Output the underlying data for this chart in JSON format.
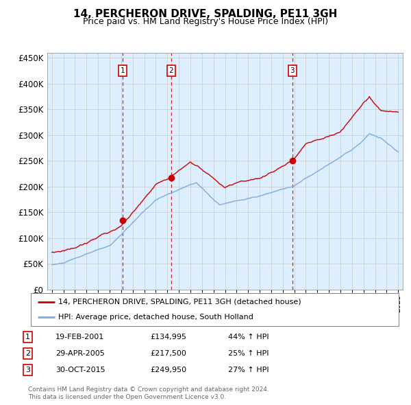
{
  "title": "14, PERCHERON DRIVE, SPALDING, PE11 3GH",
  "subtitle": "Price paid vs. HM Land Registry's House Price Index (HPI)",
  "legend_line1": "14, PERCHERON DRIVE, SPALDING, PE11 3GH (detached house)",
  "legend_line2": "HPI: Average price, detached house, South Holland",
  "footer1": "Contains HM Land Registry data © Crown copyright and database right 2024.",
  "footer2": "This data is licensed under the Open Government Licence v3.0.",
  "sale_color": "#cc0000",
  "hpi_color": "#7aaddc",
  "bg_color": "#ddeeff",
  "purchases": [
    {
      "num": 1,
      "date": "19-FEB-2001",
      "price": "£134,995",
      "pct": "44%",
      "dir": "↑",
      "year_x": 2001.13,
      "price_val": 134995
    },
    {
      "num": 2,
      "date": "29-APR-2005",
      "price": "£217,500",
      "pct": "25%",
      "dir": "↑",
      "year_x": 2005.33,
      "price_val": 217500
    },
    {
      "num": 3,
      "date": "30-OCT-2015",
      "price": "£249,950",
      "pct": "27%",
      "dir": "↑",
      "year_x": 2015.83,
      "price_val": 249950
    }
  ],
  "ylim": [
    0,
    460000
  ],
  "yticks": [
    0,
    50000,
    100000,
    150000,
    200000,
    250000,
    300000,
    350000,
    400000,
    450000
  ],
  "xlim_start": 1994.6,
  "xlim_end": 2025.4
}
